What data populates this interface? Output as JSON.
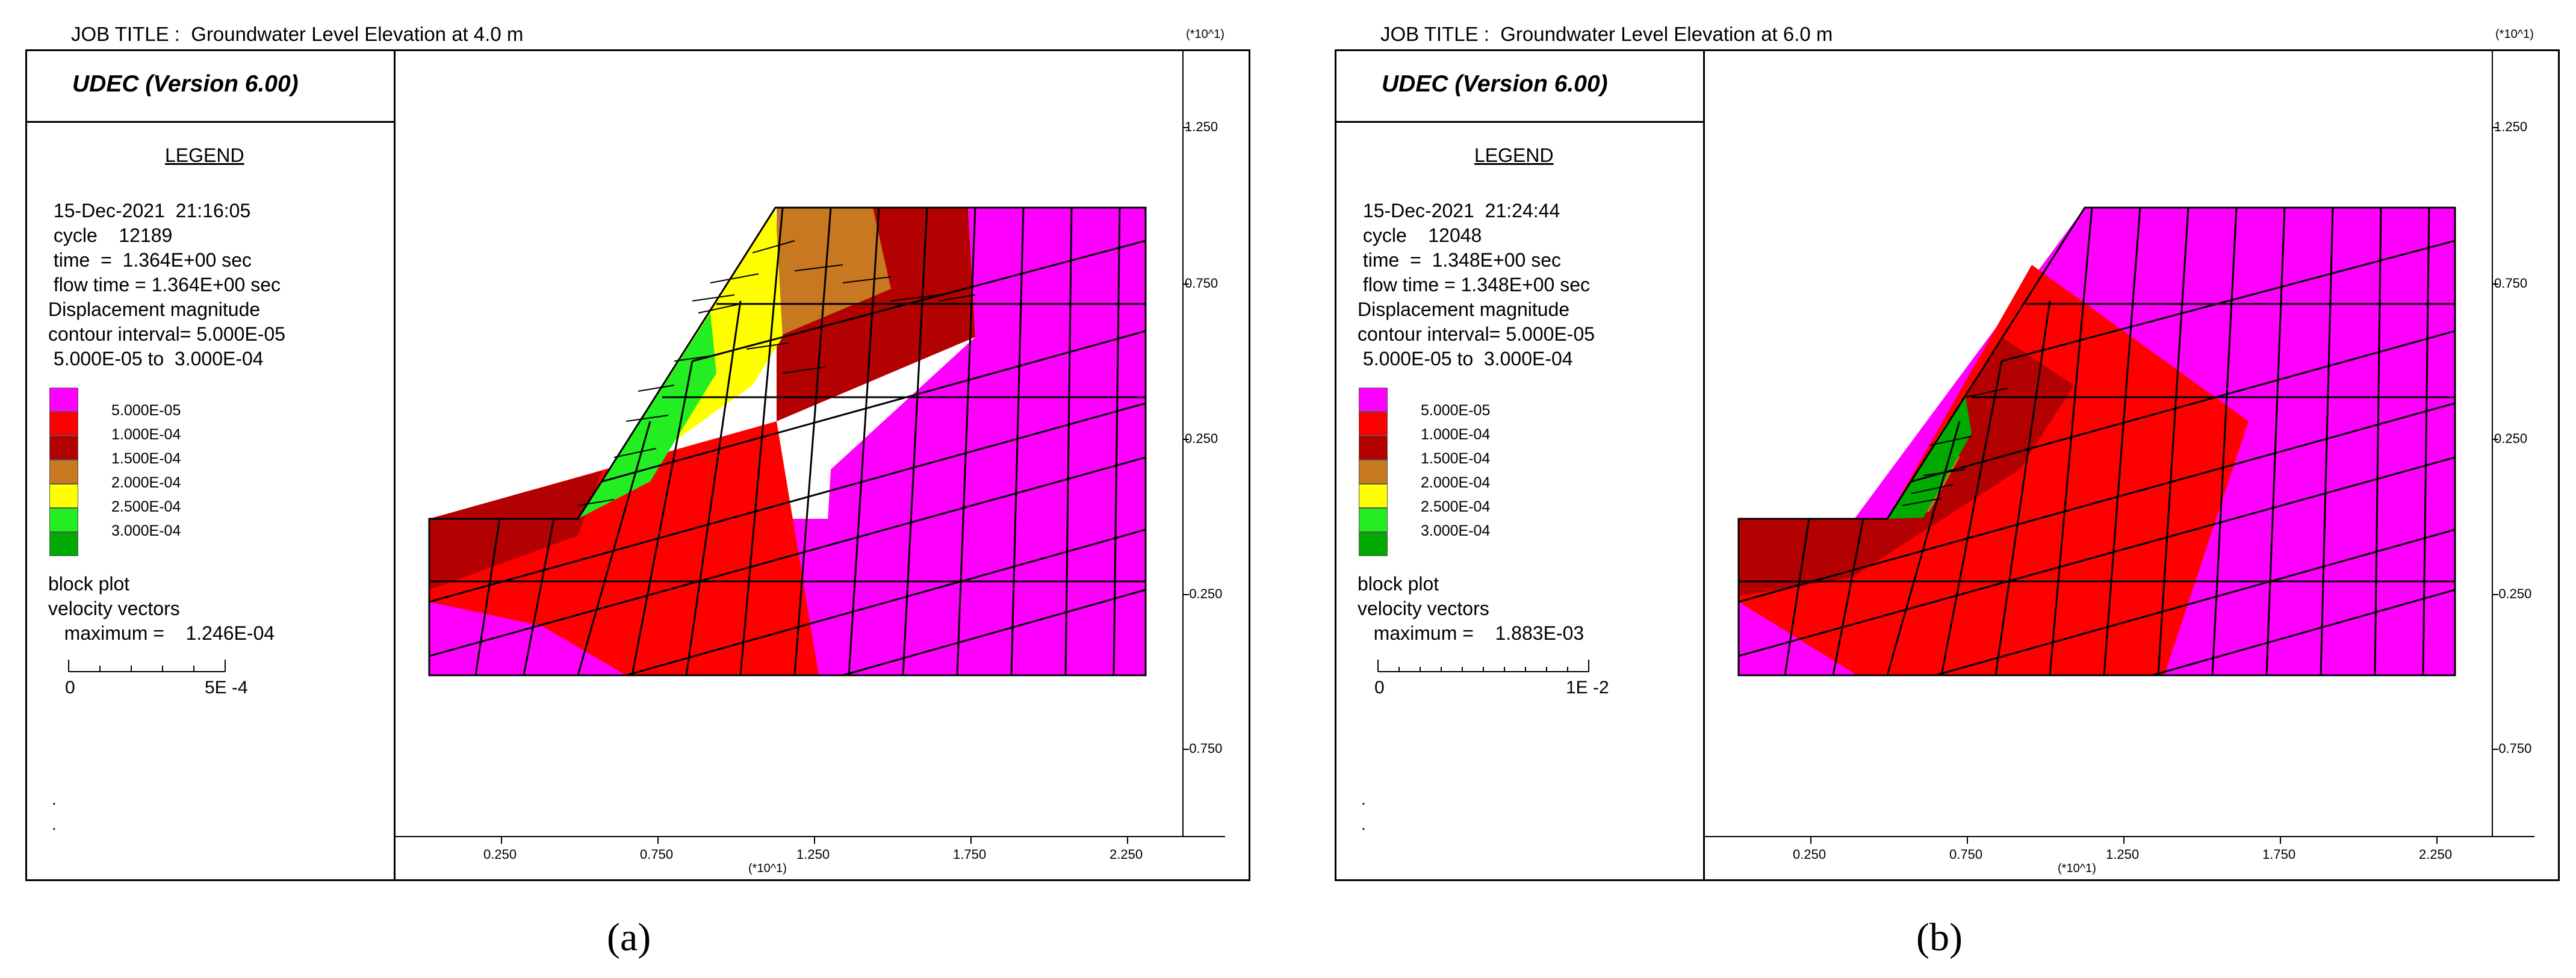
{
  "panels": [
    {
      "job_title": "JOB TITLE :  Groundwater Level Elevation at 4.0 m",
      "version": "UDEC (Version 6.00)",
      "legend_title": "LEGEND",
      "date_line": " 15-Dec-2021  21:16:05",
      "cycle_line": " cycle    12189",
      "time_line": " time  =  1.364E+00 sec",
      "flow_line": " flow time = 1.364E+00 sec",
      "disp_line": "Displacement magnitude",
      "interval_line": "contour interval= 5.000E-05",
      "range_line": " 5.000E-05 to  3.000E-04",
      "contours": [
        {
          "label": "5.000E-05",
          "color": "#ff00ff"
        },
        {
          "label": "1.000E-04",
          "color": "#ff0000"
        },
        {
          "label": "1.500E-04",
          "color": "#b30000"
        },
        {
          "label": "2.000E-04",
          "color": "#c87820"
        },
        {
          "label": "2.500E-04",
          "color": "#ffff00"
        },
        {
          "label": "3.000E-04",
          "color": "#22ee22"
        }
      ],
      "extra_color": "#00aa00",
      "block_plot": "block plot",
      "velocity_vectors": "velocity vectors",
      "maximum_line": "   maximum =    1.246E-04",
      "scale_start": "0",
      "scale_end": "5E -4",
      "x_ticks": [
        "0.250",
        "0.750",
        "1.250",
        "1.750",
        "2.250"
      ],
      "y_ticks": [
        "1.250",
        "0.750",
        "0.250",
        "-0.250",
        "-0.750"
      ],
      "axis_exponent": "(*10^1)",
      "subfigure_label": "(a)"
    },
    {
      "job_title": "JOB TITLE :  Groundwater Level Elevation at 6.0 m",
      "version": "UDEC (Version 6.00)",
      "legend_title": "LEGEND",
      "date_line": " 15-Dec-2021  21:24:44",
      "cycle_line": " cycle    12048",
      "time_line": " time  =  1.348E+00 sec",
      "flow_line": " flow time = 1.348E+00 sec",
      "disp_line": "Displacement magnitude",
      "interval_line": "contour interval= 5.000E-05",
      "range_line": " 5.000E-05 to  3.000E-04",
      "contours": [
        {
          "label": "5.000E-05",
          "color": "#ff00ff"
        },
        {
          "label": "1.000E-04",
          "color": "#ff0000"
        },
        {
          "label": "1.500E-04",
          "color": "#b30000"
        },
        {
          "label": "2.000E-04",
          "color": "#c87820"
        },
        {
          "label": "2.500E-04",
          "color": "#ffff00"
        },
        {
          "label": "3.000E-04",
          "color": "#22ee22"
        }
      ],
      "extra_color": "#00aa00",
      "block_plot": "block plot",
      "velocity_vectors": "velocity vectors",
      "maximum_line": "   maximum =    1.883E-03",
      "scale_start": "0",
      "scale_end": "1E -2",
      "x_ticks": [
        "0.250",
        "0.750",
        "1.250",
        "1.750",
        "2.250"
      ],
      "y_ticks": [
        "1.250",
        "0.750",
        "0.250",
        "-0.250",
        "-0.750"
      ],
      "axis_exponent": "(*10^1)",
      "subfigure_label": "(b)"
    }
  ]
}
